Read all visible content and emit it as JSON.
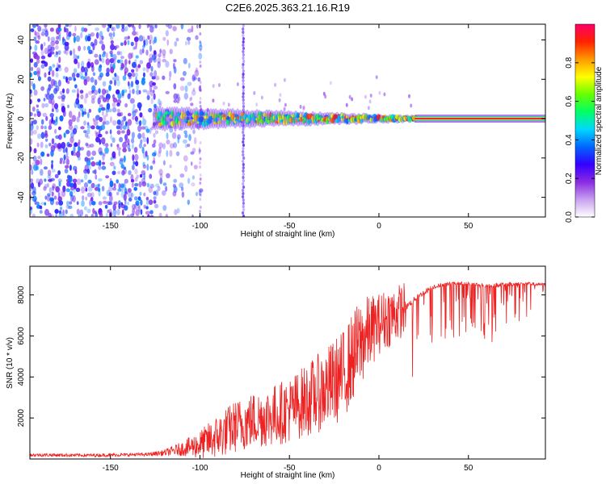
{
  "figure_title": "C2E6.2025.363.21.16.R19",
  "chart_data": [
    {
      "type": "heatmap",
      "title": "C2E6.2025.363.21.16.R19",
      "xlabel": "Height of straight line (km)",
      "ylabel": "Frequency (Hz)",
      "xlim": [
        -195,
        93
      ],
      "ylim": [
        -50,
        48
      ],
      "xticks": [
        -150,
        -100,
        -50,
        0,
        50
      ],
      "yticks": [
        -40,
        -20,
        0,
        20,
        40
      ],
      "colorbar": {
        "label": "Normalized spectral amplitude",
        "range": [
          0,
          1
        ],
        "ticks": [
          0.0,
          0.2,
          0.4,
          0.6,
          0.8
        ],
        "stops": [
          "#ffffff",
          "#c8a0f0",
          "#8a2be2",
          "#3300ff",
          "#0066ff",
          "#00d8ff",
          "#00ff66",
          "#66ff00",
          "#ffff00",
          "#ff9900",
          "#ff2200",
          "#ff0066"
        ]
      },
      "carrier_frequency_hz": 0,
      "features": {
        "noise_region_km": [
          -195,
          -125
        ],
        "sparse_noise_region_km": [
          -125,
          -100
        ],
        "turbulent_band_km": [
          -125,
          20
        ],
        "stable_carrier_km": [
          20,
          93
        ],
        "stripe_km": [
          -100,
          -76
        ]
      }
    },
    {
      "type": "line",
      "xlabel": "Height of straight line (km)",
      "ylabel": "SNR (10 * v/v)",
      "xlim": [
        -195,
        93
      ],
      "ylim": [
        0,
        9400
      ],
      "xticks": [
        -150,
        -100,
        -50,
        0,
        50
      ],
      "yticks": [
        2000,
        4000,
        6000,
        8000
      ],
      "series": [
        {
          "name": "SNR",
          "color": "#ee2222",
          "x": [
            -195,
            -160,
            -130,
            -120,
            -110,
            -100,
            -90,
            -80,
            -70,
            -60,
            -50,
            -40,
            -30,
            -20,
            -15,
            -10,
            -5,
            0,
            5,
            10,
            15,
            20,
            30,
            40,
            50,
            60,
            70,
            80,
            93
          ],
          "y": [
            200,
            180,
            220,
            300,
            500,
            700,
            1100,
            1600,
            1900,
            2100,
            2400,
            2900,
            3400,
            4100,
            4900,
            5700,
            6200,
            6600,
            6900,
            7100,
            7400,
            7800,
            8400,
            8550,
            8550,
            8450,
            8500,
            8550,
            8500
          ],
          "noise_amp": [
            80,
            80,
            80,
            150,
            350,
            700,
            1100,
            1300,
            1400,
            1500,
            1600,
            1800,
            2000,
            2200,
            2200,
            2200,
            1800,
            1500,
            1500,
            1400,
            1300,
            1100,
            900,
            800,
            700,
            800,
            800,
            700,
            600
          ]
        }
      ]
    }
  ]
}
